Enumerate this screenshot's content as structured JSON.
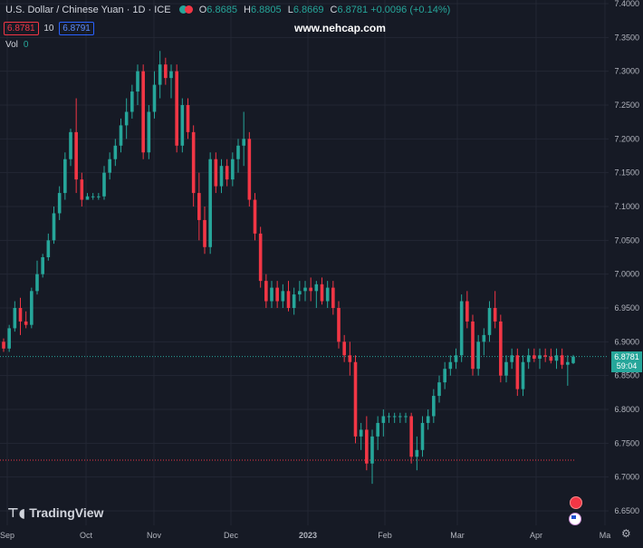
{
  "header": {
    "symbol": "U.S. Dollar / Chinese Yuan · 1D · ICE",
    "o_label": "O",
    "o": "6.8685",
    "h_label": "H",
    "h": "6.8805",
    "l_label": "L",
    "l": "6.8669",
    "c_label": "C",
    "c": "6.8781",
    "change": "+0.0096 (+0.14%)",
    "sell": "6.8781",
    "spread": "10",
    "buy": "6.8791",
    "vol_label": "Vol",
    "vol_value": "0"
  },
  "watermark": "www.nehcap.com",
  "brand": "TradingView",
  "last_price_tag": {
    "price": "6.8781",
    "countdown": "59:04"
  },
  "colors": {
    "up": "#26a69a",
    "down": "#f23645",
    "background": "#161a25",
    "grid": "#232734",
    "text": "#b2b5be"
  },
  "chart_data": {
    "type": "candlestick",
    "y_axis": {
      "side": "right",
      "ylim": [
        6.64,
        7.4
      ],
      "ticks": [
        "7.4000",
        "7.3500",
        "7.3000",
        "7.2500",
        "7.2000",
        "7.1500",
        "7.1000",
        "7.0500",
        "7.0000",
        "6.9500",
        "6.9000",
        "6.8500",
        "6.8000",
        "6.7500",
        "6.7000",
        "6.6500"
      ]
    },
    "x_axis": {
      "labels": [
        "Sep",
        "Oct",
        "Nov",
        "Dec",
        "2023",
        "Feb",
        "Mar",
        "Apr",
        "Ma"
      ]
    },
    "grid": true,
    "reference_lines": [
      {
        "value": 6.8781,
        "style": "dotted",
        "color": "#26a69a"
      },
      {
        "value": 6.725,
        "style": "dotted",
        "color": "#f23645"
      }
    ],
    "candles": [
      [
        6.9,
        6.905,
        6.885,
        6.89
      ],
      [
        6.89,
        6.925,
        6.885,
        6.92
      ],
      [
        6.92,
        6.96,
        6.915,
        6.95
      ],
      [
        6.95,
        6.965,
        6.91,
        6.93
      ],
      [
        6.93,
        6.945,
        6.92,
        6.925
      ],
      [
        6.925,
        6.98,
        6.92,
        6.975
      ],
      [
        6.975,
        7.02,
        6.97,
        7.0
      ],
      [
        7.0,
        7.03,
        6.995,
        7.025
      ],
      [
        7.025,
        7.06,
        7.02,
        7.05
      ],
      [
        7.05,
        7.1,
        7.045,
        7.09
      ],
      [
        7.09,
        7.13,
        7.08,
        7.12
      ],
      [
        7.12,
        7.18,
        7.11,
        7.17
      ],
      [
        7.17,
        7.215,
        7.16,
        7.21
      ],
      [
        7.21,
        7.26,
        7.12,
        7.14
      ],
      [
        7.14,
        7.15,
        7.1,
        7.11
      ],
      [
        7.11,
        7.12,
        7.11,
        7.115
      ],
      [
        7.115,
        7.12,
        7.11,
        7.115
      ],
      [
        7.115,
        7.12,
        7.11,
        7.115
      ],
      [
        7.115,
        7.16,
        7.11,
        7.15
      ],
      [
        7.15,
        7.18,
        7.14,
        7.17
      ],
      [
        7.17,
        7.2,
        7.16,
        7.19
      ],
      [
        7.19,
        7.23,
        7.18,
        7.22
      ],
      [
        7.22,
        7.26,
        7.2,
        7.24
      ],
      [
        7.24,
        7.28,
        7.23,
        7.27
      ],
      [
        7.27,
        7.31,
        7.25,
        7.3
      ],
      [
        7.3,
        7.31,
        7.17,
        7.18
      ],
      [
        7.18,
        7.25,
        7.17,
        7.24
      ],
      [
        7.24,
        7.3,
        7.23,
        7.28
      ],
      [
        7.28,
        7.33,
        7.26,
        7.31
      ],
      [
        7.31,
        7.32,
        7.28,
        7.29
      ],
      [
        7.29,
        7.31,
        7.26,
        7.3
      ],
      [
        7.3,
        7.31,
        7.18,
        7.19
      ],
      [
        7.19,
        7.26,
        7.18,
        7.25
      ],
      [
        7.25,
        7.26,
        7.2,
        7.21
      ],
      [
        7.21,
        7.22,
        7.1,
        7.12
      ],
      [
        7.12,
        7.15,
        7.05,
        7.08
      ],
      [
        7.08,
        7.1,
        7.03,
        7.04
      ],
      [
        7.04,
        7.18,
        7.03,
        7.17
      ],
      [
        7.17,
        7.18,
        7.12,
        7.13
      ],
      [
        7.13,
        7.17,
        7.12,
        7.16
      ],
      [
        7.16,
        7.17,
        7.13,
        7.14
      ],
      [
        7.14,
        7.18,
        7.13,
        7.17
      ],
      [
        7.17,
        7.2,
        7.15,
        7.19
      ],
      [
        7.19,
        7.24,
        7.16,
        7.2
      ],
      [
        7.2,
        7.21,
        7.1,
        7.11
      ],
      [
        7.11,
        7.12,
        7.05,
        7.06
      ],
      [
        7.06,
        7.07,
        6.98,
        6.99
      ],
      [
        6.99,
        7.0,
        6.95,
        6.96
      ],
      [
        6.96,
        6.99,
        6.95,
        6.98
      ],
      [
        6.98,
        6.99,
        6.95,
        6.96
      ],
      [
        6.96,
        6.985,
        6.95,
        6.975
      ],
      [
        6.975,
        6.99,
        6.945,
        6.95
      ],
      [
        6.95,
        6.98,
        6.94,
        6.97
      ],
      [
        6.97,
        6.99,
        6.96,
        6.975
      ],
      [
        6.975,
        6.99,
        6.96,
        6.98
      ],
      [
        6.98,
        6.995,
        6.96,
        6.975
      ],
      [
        6.975,
        6.99,
        6.95,
        6.985
      ],
      [
        6.985,
        6.995,
        6.955,
        6.96
      ],
      [
        6.96,
        6.99,
        6.95,
        6.98
      ],
      [
        6.98,
        6.99,
        6.94,
        6.95
      ],
      [
        6.95,
        6.96,
        6.89,
        6.9
      ],
      [
        6.9,
        6.91,
        6.87,
        6.88
      ],
      [
        6.88,
        6.9,
        6.85,
        6.87
      ],
      [
        6.87,
        6.88,
        6.75,
        6.76
      ],
      [
        6.76,
        6.78,
        6.74,
        6.77
      ],
      [
        6.77,
        6.79,
        6.71,
        6.72
      ],
      [
        6.72,
        6.77,
        6.69,
        6.76
      ],
      [
        6.76,
        6.79,
        6.74,
        6.78
      ],
      [
        6.78,
        6.8,
        6.76,
        6.79
      ],
      [
        6.79,
        6.795,
        6.78,
        6.79
      ],
      [
        6.79,
        6.795,
        6.78,
        6.79
      ],
      [
        6.79,
        6.795,
        6.78,
        6.79
      ],
      [
        6.79,
        6.795,
        6.78,
        6.79
      ],
      [
        6.79,
        6.795,
        6.72,
        6.73
      ],
      [
        6.73,
        6.76,
        6.71,
        6.74
      ],
      [
        6.74,
        6.79,
        6.73,
        6.78
      ],
      [
        6.78,
        6.8,
        6.77,
        6.79
      ],
      [
        6.79,
        6.83,
        6.78,
        6.82
      ],
      [
        6.82,
        6.85,
        6.81,
        6.84
      ],
      [
        6.84,
        6.87,
        6.83,
        6.86
      ],
      [
        6.86,
        6.88,
        6.85,
        6.87
      ],
      [
        6.87,
        6.89,
        6.86,
        6.88
      ],
      [
        6.88,
        6.97,
        6.87,
        6.96
      ],
      [
        6.96,
        6.975,
        6.92,
        6.93
      ],
      [
        6.93,
        6.94,
        6.85,
        6.86
      ],
      [
        6.86,
        6.91,
        6.85,
        6.9
      ],
      [
        6.9,
        6.92,
        6.88,
        6.91
      ],
      [
        6.91,
        6.96,
        6.9,
        6.95
      ],
      [
        6.95,
        6.975,
        6.92,
        6.93
      ],
      [
        6.93,
        6.94,
        6.84,
        6.85
      ],
      [
        6.85,
        6.88,
        6.84,
        6.87
      ],
      [
        6.87,
        6.89,
        6.86,
        6.88
      ],
      [
        6.88,
        6.89,
        6.82,
        6.83
      ],
      [
        6.83,
        6.88,
        6.82,
        6.87
      ],
      [
        6.87,
        6.89,
        6.86,
        6.88
      ],
      [
        6.88,
        6.89,
        6.87,
        6.875
      ],
      [
        6.875,
        6.89,
        6.86,
        6.88
      ],
      [
        6.88,
        6.89,
        6.87,
        6.878
      ],
      [
        6.878,
        6.89,
        6.868,
        6.872
      ],
      [
        6.872,
        6.89,
        6.86,
        6.88
      ],
      [
        6.88,
        6.89,
        6.86,
        6.866
      ],
      [
        6.866,
        6.88,
        6.835,
        6.87
      ],
      [
        6.8685,
        6.8805,
        6.8669,
        6.8781
      ]
    ]
  }
}
